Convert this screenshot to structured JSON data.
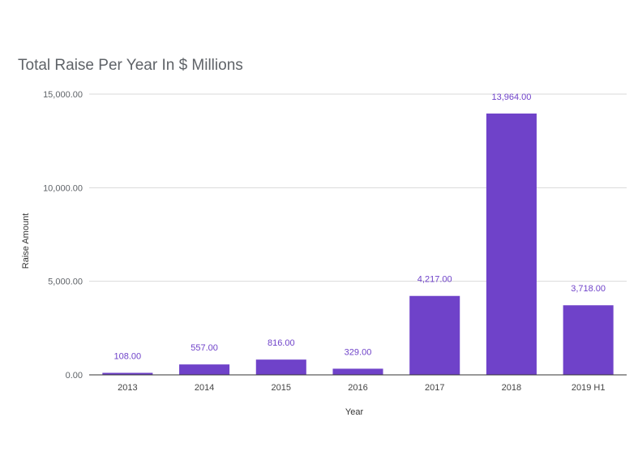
{
  "chart_data": {
    "type": "bar",
    "title": "Total Raise Per Year In $ Millions",
    "xlabel": "Year",
    "ylabel": "Raise  Amount",
    "categories": [
      "2013",
      "2014",
      "2015",
      "2016",
      "2017",
      "2018",
      "2019 H1"
    ],
    "values": [
      108,
      557,
      816,
      329,
      4217,
      13964,
      3718
    ],
    "data_labels": [
      "108.00",
      "557.00",
      "816.00",
      "329.00",
      "4,217.00",
      "13,964.00",
      "3,718.00"
    ],
    "ylim": [
      0,
      15000
    ],
    "yticks": [
      0,
      5000,
      10000,
      15000
    ],
    "ytick_labels": [
      "0.00",
      "5,000.00",
      "10,000.00",
      "15,000.00"
    ],
    "grid": true,
    "legend": "none",
    "colors": {
      "bar": "#6f42c9",
      "data_label": "#6f42c9",
      "grid": "#d9d9d9",
      "baseline": "#333333"
    }
  }
}
